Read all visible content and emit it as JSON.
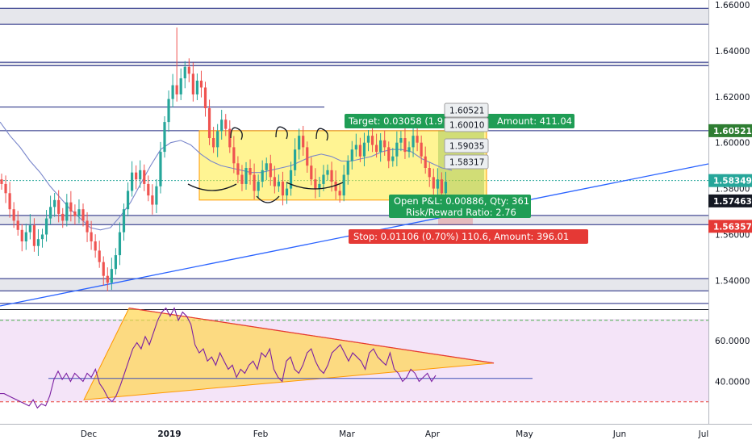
{
  "chart_data": [
    {
      "type": "candlestick",
      "title": "",
      "xlabel": "",
      "ylabel": "",
      "ylim": [
        1.527,
        1.664
      ],
      "x_ticks": [
        "Dec",
        "2019",
        "Feb",
        "Mar",
        "Apr",
        "May",
        "Jun",
        "Jul"
      ],
      "y_ticks": [
        "1.66000",
        "1.64000",
        "1.62000",
        "1.60000",
        "1.58000",
        "1.56000",
        "1.54000"
      ],
      "price_badges": [
        {
          "value": "1.60521",
          "color": "#2e7d32"
        },
        {
          "value": "1.58349",
          "color": "#26a69a"
        },
        {
          "value": "1.57463",
          "color": "#131722"
        },
        {
          "value": "1.56357",
          "color": "#e53935"
        }
      ],
      "series": [
        {
          "name": "price",
          "close": [
            1.582,
            1.578,
            1.571,
            1.566,
            1.562,
            1.557,
            1.561,
            1.564,
            1.555,
            1.558,
            1.56,
            1.567,
            1.572,
            1.575,
            1.569,
            1.566,
            1.574,
            1.57,
            1.568,
            1.571,
            1.566,
            1.561,
            1.557,
            1.553,
            1.548,
            1.542,
            1.539,
            1.545,
            1.551,
            1.561,
            1.571,
            1.579,
            1.587,
            1.584,
            1.588,
            1.582,
            1.577,
            1.573,
            1.581,
            1.596,
            1.609,
            1.619,
            1.625,
            1.621,
            1.628,
            1.633,
            1.63,
            1.621,
            1.627,
            1.624,
            1.615,
            1.602,
            1.598,
            1.605,
            1.61,
            1.606,
            1.598,
            1.591,
            1.586,
            1.582,
            1.589,
            1.586,
            1.579,
            1.583,
            1.588,
            1.591,
            1.585,
            1.581,
            1.583,
            1.577,
            1.58,
            1.588,
            1.597,
            1.603,
            1.598,
            1.59,
            1.584,
            1.58,
            1.582,
            1.586,
            1.588,
            1.583,
            1.579,
            1.577,
            1.586,
            1.592,
            1.597,
            1.599,
            1.594,
            1.6,
            1.603,
            1.599,
            1.596,
            1.601,
            1.598,
            1.592,
            1.594,
            1.6,
            1.602,
            1.596,
            1.598,
            1.603,
            1.6,
            1.594,
            1.589,
            1.585,
            1.58,
            1.584,
            1.578,
            1.583
          ]
        },
        {
          "name": "moving average",
          "values": [
            1.609,
            1.603,
            1.598,
            1.592,
            1.587,
            1.581,
            1.576,
            1.571,
            1.567,
            1.563,
            1.562,
            1.563,
            1.568,
            1.574,
            1.582,
            1.59,
            1.597,
            1.6,
            1.601,
            1.599,
            1.595,
            1.592,
            1.59,
            1.589,
            1.588,
            1.587,
            1.587,
            1.588,
            1.589,
            1.59,
            1.592,
            1.594,
            1.595,
            1.594,
            1.592,
            1.592,
            1.593,
            1.594,
            1.596,
            1.597,
            1.597,
            1.596,
            1.593,
            1.591,
            1.589,
            1.588
          ]
        }
      ],
      "horizontal_levels": [
        1.6585,
        1.6515,
        1.635,
        1.6335,
        1.6155,
        1.6052,
        1.5835,
        1.5683,
        1.5643,
        1.5408,
        1.5355,
        1.53
      ],
      "trendline": [
        [
          1.53,
          1.59
        ]
      ],
      "rectangle": {
        "low": 1.575,
        "high": 1.6052
      },
      "annotations": {
        "target": "Target: 0.03058 (1.9",
        "target_amount": "Amount: 411.04",
        "open_pnl": "Open P&L: 0.00886, Qty: 361",
        "risk_reward": "Risk/Reward Ratio: 2.76",
        "stop": "Stop: 0.01106 (0.70%) 110.6, Amount: 396.01",
        "price_labels": [
          "1.60521",
          "1.60010",
          "1.59035",
          "1.58317"
        ]
      }
    },
    {
      "type": "line",
      "title": "",
      "xlabel": "",
      "ylabel": "",
      "ylim": [
        17,
        82
      ],
      "y_ticks": [
        "60.0000",
        "40.0000"
      ],
      "levels": [
        70,
        30
      ],
      "series": [
        {
          "name": "oscillator",
          "values": [
            34,
            34,
            33,
            32,
            31,
            30,
            29,
            28,
            31,
            27,
            29,
            28,
            33,
            41,
            45,
            41,
            44,
            40,
            44,
            42,
            40,
            44,
            42,
            46,
            39,
            36,
            32,
            30,
            33,
            38,
            44,
            50,
            56,
            59,
            56,
            62,
            58,
            64,
            70,
            74,
            76,
            72,
            76,
            70,
            74,
            72,
            68,
            58,
            54,
            56,
            50,
            52,
            48,
            54,
            50,
            46,
            48,
            42,
            46,
            44,
            48,
            50,
            46,
            54,
            52,
            56,
            46,
            42,
            40,
            50,
            52,
            46,
            44,
            48,
            54,
            56,
            50,
            46,
            44,
            48,
            54,
            56,
            58,
            54,
            50,
            54,
            52,
            50,
            46,
            54,
            56,
            52,
            50,
            48,
            54,
            46,
            44,
            40,
            42,
            46,
            44,
            40,
            42,
            44,
            40,
            43
          ]
        }
      ],
      "triangle_note": "converging triangle drawn from December low to April"
    }
  ]
}
